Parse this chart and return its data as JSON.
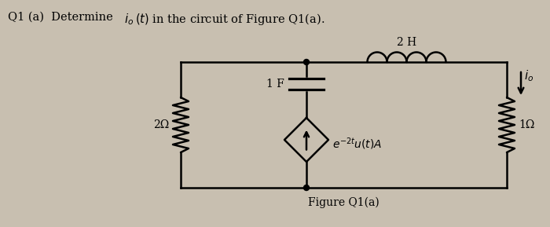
{
  "title_parts": [
    "Q1 (a)  Determine ",
    "i",
    "o",
    "(t) in the circuit of Figure Q1(a)."
  ],
  "figure_label": "Figure Q1(a)",
  "background_color": "#c8bfb0",
  "inductor_label": "2 H",
  "capacitor_label": "1 F",
  "resistor_left_label": "2Ω",
  "resistor_right_label": "1Ω",
  "current_source_label": "e^{-2t}u(t)A",
  "io_label": "i_o",
  "lw": 1.8
}
